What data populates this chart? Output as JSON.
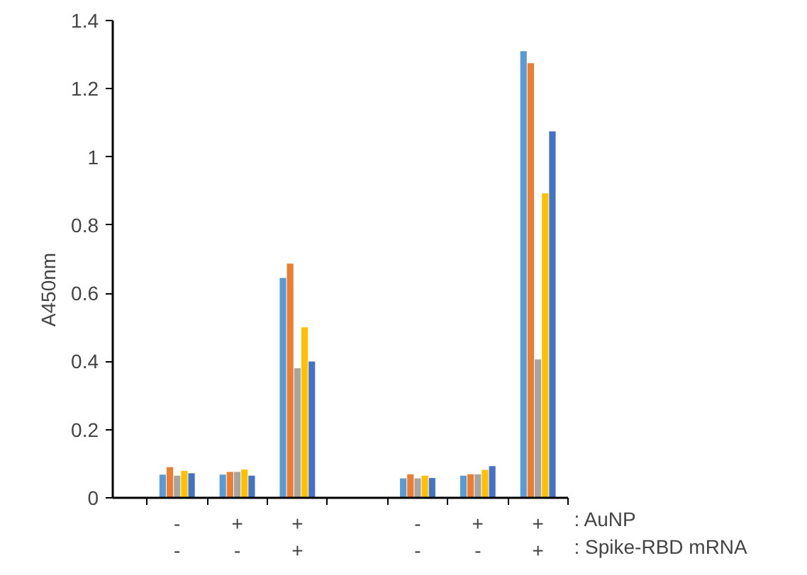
{
  "chart_data": {
    "type": "bar",
    "ylabel": "A450nm",
    "categories": [
      "-\n-",
      "+\n-",
      "+\n+",
      null,
      "-\n-",
      "+\n-",
      "+\n+"
    ],
    "series": [
      {
        "color": "#5b9bd5",
        "values": [
          0.068,
          0.068,
          0.645,
          null,
          0.057,
          0.065,
          1.31
        ]
      },
      {
        "color": "#ed7d31",
        "values": [
          0.09,
          0.076,
          0.687,
          null,
          0.069,
          0.069,
          1.275
        ]
      },
      {
        "color": "#a5a5a5",
        "values": [
          0.065,
          0.076,
          0.38,
          null,
          0.057,
          0.069,
          0.406
        ]
      },
      {
        "color": "#ffc000",
        "values": [
          0.079,
          0.083,
          0.5,
          null,
          0.065,
          0.082,
          0.893
        ]
      },
      {
        "color": "#4472c4",
        "values": [
          0.072,
          0.065,
          0.4,
          null,
          0.058,
          0.093,
          1.075
        ]
      }
    ],
    "ylim": [
      0,
      1.4
    ],
    "yticks": [
      0,
      0.2,
      0.4,
      0.6,
      0.8,
      1,
      1.2,
      1.4
    ],
    "grid": false,
    "annotations": [
      ": AuNP",
      ": Spike-RBD mRNA"
    ]
  }
}
